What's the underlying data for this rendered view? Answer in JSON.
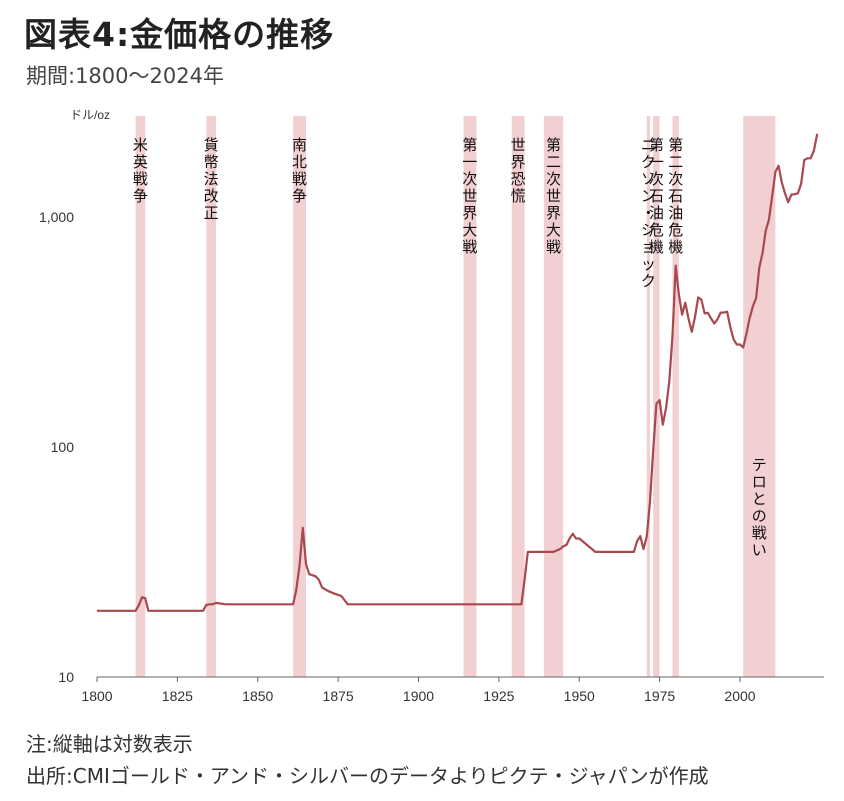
{
  "header": {
    "title": "図表4:金価格の推移",
    "subtitle": "期間:1800〜2024年"
  },
  "notes": {
    "axis_note": "注:縦軸は対数表示",
    "source": "出所:CMIゴールド・アンド・シルバーのデータよりピクテ・ジャパンが作成"
  },
  "colors": {
    "line": "#a8484f",
    "band": "#f2cfd1",
    "axis": "#666666"
  },
  "chart_data": {
    "type": "line",
    "title": "図表4:金価格の推移",
    "ylabel": "ドル/oz",
    "yscale": "log",
    "ylim": [
      10,
      2500
    ],
    "xlim": [
      1800,
      2024
    ],
    "yticks": [
      {
        "value": 10,
        "label": "10"
      },
      {
        "value": 100,
        "label": "100"
      },
      {
        "value": 1000,
        "label": "1,000"
      }
    ],
    "xticks": [
      {
        "value": 1800,
        "label": "1800"
      },
      {
        "value": 1825,
        "label": "1825"
      },
      {
        "value": 1850,
        "label": "1850"
      },
      {
        "value": 1875,
        "label": "1875"
      },
      {
        "value": 1900,
        "label": "1900"
      },
      {
        "value": 1925,
        "label": "1925"
      },
      {
        "value": 1950,
        "label": "1950"
      },
      {
        "value": 1975,
        "label": "1975"
      },
      {
        "value": 2000,
        "label": "2000"
      }
    ],
    "events": [
      {
        "label": "米英戦争",
        "start": 1812,
        "end": 1815
      },
      {
        "label": "貨幣法改正",
        "start": 1834,
        "end": 1837
      },
      {
        "label": "南北戦争",
        "start": 1861,
        "end": 1865
      },
      {
        "label": "第一次世界大戦",
        "start": 1914,
        "end": 1918
      },
      {
        "label": "世界恐慌",
        "start": 1929,
        "end": 1933
      },
      {
        "label": "第二次世界大戦",
        "start": 1939,
        "end": 1945
      },
      {
        "label": "ニクソン・ショック",
        "start": 1971,
        "end": 1972
      },
      {
        "label": "第一次石油危機",
        "start": 1973,
        "end": 1975
      },
      {
        "label": "第二次石油危機",
        "start": 1979,
        "end": 1981
      },
      {
        "label": "テロとの戦い",
        "start": 2001,
        "end": 2011
      }
    ],
    "series": [
      {
        "x": [
          1800,
          1810,
          1812,
          1813,
          1814,
          1815,
          1816,
          1820,
          1830,
          1833,
          1834,
          1835,
          1836,
          1837,
          1840,
          1850,
          1860,
          1861,
          1862,
          1863,
          1864,
          1865,
          1866,
          1868,
          1869,
          1870,
          1872,
          1874,
          1876,
          1878,
          1879,
          1880,
          1890,
          1900,
          1910,
          1920,
          1930,
          1932,
          1933,
          1934,
          1935,
          1936,
          1937,
          1938,
          1939,
          1940,
          1942,
          1944,
          1945,
          1946,
          1947,
          1948,
          1949,
          1950,
          1955,
          1960,
          1961,
          1962,
          1963,
          1965,
          1967,
          1968,
          1969,
          1970,
          1971,
          1972,
          1973,
          1974,
          1975,
          1976,
          1977,
          1978,
          1979,
          1980,
          1981,
          1982,
          1983,
          1984,
          1985,
          1986,
          1987,
          1988,
          1989,
          1990,
          1991,
          1992,
          1993,
          1994,
          1995,
          1996,
          1997,
          1998,
          1999,
          2000,
          2001,
          2002,
          2003,
          2004,
          2005,
          2006,
          2007,
          2008,
          2009,
          2010,
          2011,
          2012,
          2013,
          2014,
          2015,
          2016,
          2017,
          2018,
          2019,
          2020,
          2021,
          2022,
          2023,
          2024
        ],
        "y": [
          19.4,
          19.4,
          19.4,
          20.5,
          22.2,
          22.0,
          19.4,
          19.4,
          19.4,
          19.4,
          20.6,
          20.7,
          20.7,
          21.0,
          20.7,
          20.7,
          20.7,
          20.7,
          24.0,
          30.5,
          44.5,
          31.0,
          28.0,
          27.4,
          26.5,
          24.5,
          23.6,
          23.0,
          22.5,
          20.7,
          20.7,
          20.7,
          20.7,
          20.7,
          20.7,
          20.7,
          20.7,
          20.7,
          26.5,
          35.0,
          35.0,
          35.0,
          35.0,
          35.0,
          35.0,
          35.0,
          35.0,
          36.0,
          37.0,
          37.5,
          40.0,
          42.0,
          40.0,
          40.0,
          35.0,
          35.0,
          35.0,
          35.0,
          35.0,
          35.0,
          35.0,
          39.0,
          41.0,
          36.0,
          41.0,
          58.0,
          97.0,
          154.0,
          160.0,
          125.0,
          148.0,
          193.0,
          306.0,
          615.0,
          460.0,
          376.0,
          424.0,
          360.0,
          317.0,
          368.0,
          447.0,
          437.0,
          381.0,
          383.0,
          362.0,
          344.0,
          360.0,
          384.0,
          384.0,
          388.0,
          331.0,
          294.0,
          279.0,
          279.0,
          271.0,
          310.0,
          363.0,
          409.0,
          444.0,
          603.0,
          695.0,
          872.0,
          972.0,
          1224.0,
          1571.0,
          1669.0,
          1411.0,
          1266.0,
          1160.0,
          1251.0,
          1257.0,
          1268.0,
          1393.0,
          1770.0,
          1799.0,
          1800.0,
          1943.0,
          2300.0
        ]
      }
    ]
  }
}
